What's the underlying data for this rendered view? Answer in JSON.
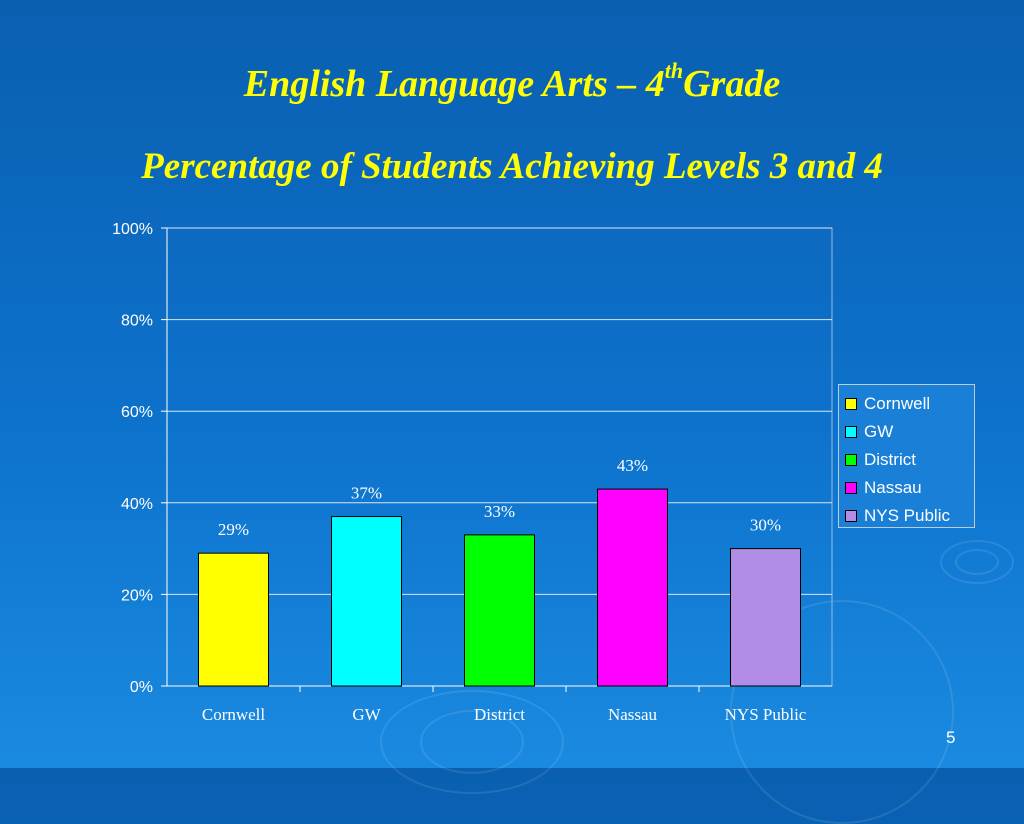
{
  "slide": {
    "title_main": "English Language Arts – 4",
    "title_sup": "th",
    "title_end": "Grade",
    "subtitle": "Percentage of Students Achieving Levels 3 and 4",
    "page_number": "5"
  },
  "chart_data": {
    "type": "bar",
    "title": "",
    "xlabel": "",
    "ylabel": "",
    "categories": [
      "Cornwell",
      "GW",
      "District",
      "Nassau",
      "NYS Public"
    ],
    "values": [
      29,
      37,
      33,
      43,
      30
    ],
    "data_labels": [
      "29%",
      "37%",
      "33%",
      "43%",
      "30%"
    ],
    "colors": [
      "#ffff00",
      "#00ffff",
      "#00ff00",
      "#ff00ff",
      "#b18de6"
    ],
    "ylim": [
      0,
      100
    ],
    "yticks": [
      0,
      20,
      40,
      60,
      80,
      100
    ],
    "ytick_labels": [
      "0%",
      "20%",
      "40%",
      "60%",
      "80%",
      "100%"
    ],
    "grid": true,
    "legend": {
      "placement": "right",
      "entries": [
        "Cornwell",
        "GW",
        "District",
        "Nassau",
        "NYS Public"
      ]
    }
  }
}
